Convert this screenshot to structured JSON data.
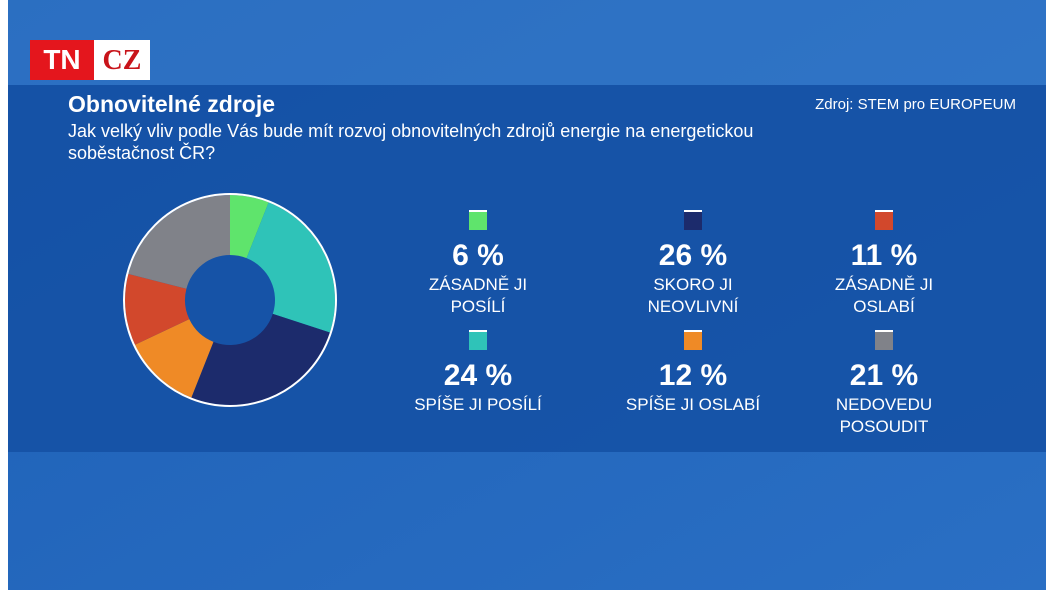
{
  "logo": {
    "left": "TN",
    "right": "CZ"
  },
  "chart_data": {
    "type": "pie",
    "donut": true,
    "title": "Obnovitelné zdroje",
    "subtitle": "Jak velký vliv podle Vás bude mít rozvoj obnovitelných zdrojů energie na energetickou soběstačnost ČR?",
    "source": "Zdroj: STEM pro EUROPEUM",
    "categories": [
      "ZÁSADNĚ JI POSÍLÍ",
      "SPÍŠE JI POSÍLÍ",
      "SKORO JI NEOVLIVNÍ",
      "SPÍŠE JI OSLABÍ",
      "ZÁSADNĚ JI OSLABÍ",
      "NEDOVEDU POSOUDIT"
    ],
    "values": [
      6,
      24,
      26,
      12,
      11,
      21
    ],
    "value_labels": [
      "6 %",
      "24 %",
      "26 %",
      "12 %",
      "11 %",
      "21 %"
    ],
    "colors": [
      "#5fe46c",
      "#2fc3b8",
      "#1c2b6c",
      "#ef8a26",
      "#d2482c",
      "#808289"
    ]
  }
}
